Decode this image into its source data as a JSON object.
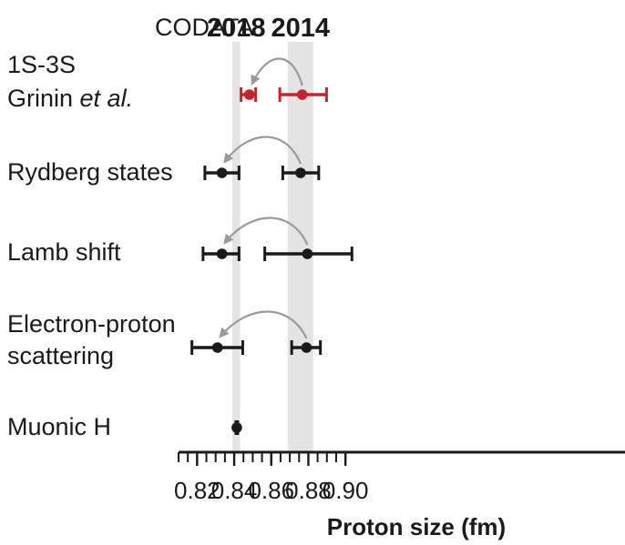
{
  "chart_data": {
    "type": "scatter",
    "subtype": "forest-plot-with-error-bars",
    "title": "",
    "xlabel": "Proton size (fm)",
    "ylabel": "",
    "xlim": [
      0.81,
      0.9
    ],
    "xticks": [
      0.82,
      0.84,
      0.86,
      0.88,
      0.9
    ],
    "xtick_labels": [
      "0.82",
      "0.84",
      "0.86",
      "0.88",
      "0.90"
    ],
    "grid": false,
    "header_label": "CODATA",
    "bands": [
      {
        "label": "2018",
        "x0": 0.839,
        "x1": 0.8432,
        "color": "#e4e4e4"
      },
      {
        "label": "2014",
        "x0": 0.8688,
        "x1": 0.8826,
        "color": "#e4e4e4"
      }
    ],
    "rows": [
      {
        "label": [
          "1S-3S",
          "Grinin ",
          "et al."
        ],
        "color": "#c8232c",
        "points": [
          {
            "x": 0.8482,
            "err_low": 0.8437,
            "err_high": 0.8516
          },
          {
            "x": 0.8767,
            "err_low": 0.8646,
            "err_high": 0.8898
          }
        ],
        "arrow": {
          "from": 0.8767,
          "to": 0.8482
        }
      },
      {
        "label": [
          "Rydberg states"
        ],
        "color": "#1a1a1a",
        "points": [
          {
            "x": 0.8334,
            "err_low": 0.8242,
            "err_high": 0.8426
          },
          {
            "x": 0.8758,
            "err_low": 0.8662,
            "err_high": 0.8856
          }
        ],
        "arrow": {
          "from": 0.8758,
          "to": 0.8334
        }
      },
      {
        "label": [
          "Lamb shift"
        ],
        "color": "#1a1a1a",
        "points": [
          {
            "x": 0.8334,
            "err_low": 0.8232,
            "err_high": 0.8426
          },
          {
            "x": 0.8795,
            "err_low": 0.8565,
            "err_high": 0.9035
          }
        ],
        "arrow": {
          "from": 0.8795,
          "to": 0.8334
        }
      },
      {
        "label": [
          "Electron-proton",
          "scattering"
        ],
        "color": "#1a1a1a",
        "points": [
          {
            "x": 0.831,
            "err_low": 0.8172,
            "err_high": 0.8446
          },
          {
            "x": 0.879,
            "err_low": 0.871,
            "err_high": 0.8865
          }
        ],
        "arrow": {
          "from": 0.879,
          "to": 0.831
        }
      },
      {
        "label": [
          "Muonic H"
        ],
        "color": "#1a1a1a",
        "points": [
          {
            "x": 0.8414,
            "err_low": 0.8409,
            "err_high": 0.8419
          }
        ],
        "arrow": null
      }
    ]
  }
}
